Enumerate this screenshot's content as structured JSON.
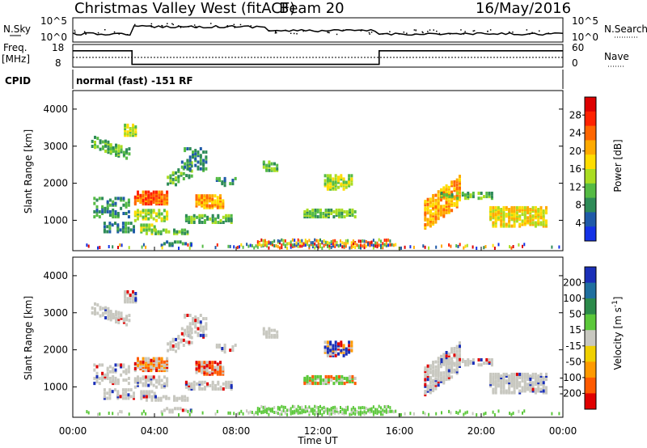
{
  "header": {
    "title": "Christmas Valley West (fitACF)",
    "beam": "Beam 20",
    "date": "16/May/2016"
  },
  "panels": {
    "nsky": {
      "left_label": "N.Sky",
      "left_ticks": [
        "10^5",
        "10^0"
      ],
      "right_ticks": [
        "10^5",
        "10^0"
      ],
      "right_label": "N.Search"
    },
    "freq": {
      "left_label_1": "Freq.",
      "left_label_2": "[MHz]",
      "left_ticks": [
        "18",
        "8"
      ],
      "right_ticks": [
        "60",
        "0"
      ],
      "right_label": "Nave"
    },
    "cpid": {
      "label": "CPID",
      "value": "normal (fast) -151 RF"
    }
  },
  "colors": {
    "power": [
      "#1432e6",
      "#1f5aa8",
      "#2e8b57",
      "#55bb44",
      "#aadd22",
      "#ffdd00",
      "#ffaa00",
      "#ff6600",
      "#ff2200",
      "#dd0000"
    ],
    "velocity": [
      "#1a2fb8",
      "#1f6f9f",
      "#2b8a4a",
      "#5bc83a",
      "#c8c8c0",
      "#f0d000",
      "#ff9a00",
      "#ff5a00",
      "#e00000"
    ]
  },
  "chart_data": [
    {
      "type": "heatmap",
      "name": "power",
      "ylabel": "Slant Range [km]",
      "ylim": [
        180,
        4500
      ],
      "y_ticks": [
        1000,
        2000,
        3000,
        4000
      ],
      "colorbar_label": "Power [dB]",
      "colorbar_ticks": [
        4,
        8,
        12,
        16,
        20,
        24,
        28
      ],
      "colorbar_range": [
        0,
        32
      ],
      "x": [
        "00:00",
        "04:00",
        "08:00",
        "12:00",
        "16:00",
        "20:00",
        "00:00"
      ]
    },
    {
      "type": "heatmap",
      "name": "velocity",
      "ylabel": "Slant Range [km]",
      "ylim": [
        180,
        4500
      ],
      "y_ticks": [
        1000,
        2000,
        3000,
        4000
      ],
      "colorbar_label": "Velocity [m s^-1]",
      "colorbar_ticks": [
        200,
        100,
        50,
        15,
        -15,
        -50,
        -100,
        -200
      ],
      "x": [
        "00:00",
        "04:00",
        "08:00",
        "12:00",
        "16:00",
        "20:00",
        "00:00"
      ],
      "xlabel": "Time UT"
    },
    {
      "type": "line",
      "name": "frequency",
      "ylim": [
        8,
        18
      ],
      "x": [
        0,
        2.9,
        2.9,
        15.0,
        15.0,
        24
      ],
      "values": [
        15.2,
        15.2,
        9.2,
        9.2,
        15.2,
        15.2
      ]
    }
  ]
}
